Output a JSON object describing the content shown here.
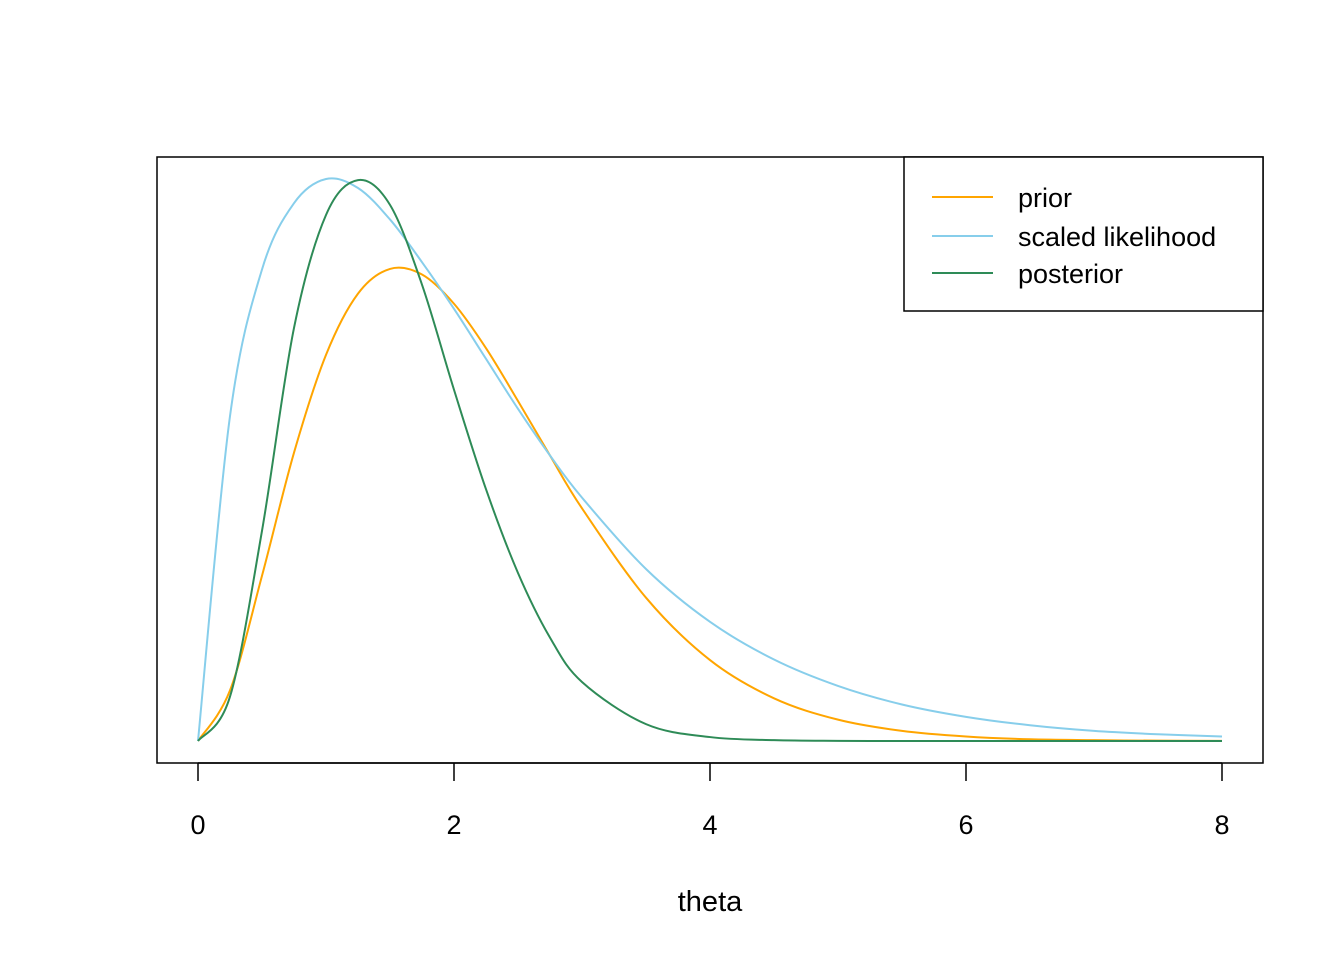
{
  "chart_data": {
    "type": "line",
    "title": "",
    "xlabel": "theta",
    "ylabel": "",
    "xlim": [
      0,
      8
    ],
    "x_ticks": [
      "0",
      "2",
      "4",
      "6",
      "8"
    ],
    "y_axis_shown": false,
    "grid": false,
    "legend_position": "top-right",
    "x": [
      0,
      0.25,
      0.5,
      0.75,
      1.0,
      1.25,
      1.5,
      1.75,
      2.0,
      2.25,
      2.5,
      2.75,
      3.0,
      3.5,
      4.0,
      4.5,
      5.0,
      5.5,
      6.0,
      6.5,
      7.0,
      7.5,
      8.0
    ],
    "series": [
      {
        "name": "prior",
        "color": "#FFA500",
        "values": [
          0,
          0.09,
          0.294,
          0.513,
          0.687,
          0.796,
          0.84,
          0.83,
          0.778,
          0.699,
          0.605,
          0.508,
          0.414,
          0.255,
          0.144,
          0.076,
          0.038,
          0.018,
          0.008,
          0.003,
          0.0015,
          0.0006,
          0.0002
        ]
      },
      {
        "name": "scaled likelihood",
        "color": "#87CEEB",
        "values": [
          0,
          0.578,
          0.839,
          0.957,
          1.0,
          0.984,
          0.928,
          0.852,
          0.769,
          0.68,
          0.591,
          0.508,
          0.433,
          0.306,
          0.212,
          0.145,
          0.098,
          0.065,
          0.043,
          0.028,
          0.018,
          0.012,
          0.008
        ]
      },
      {
        "name": "posterior",
        "color": "#2E8B57",
        "values": [
          0,
          0.079,
          0.374,
          0.735,
          0.936,
          0.998,
          0.954,
          0.812,
          0.625,
          0.448,
          0.299,
          0.184,
          0.105,
          0.03,
          0.007,
          0.0015,
          0.0003,
          5e-05,
          1e-05,
          0,
          0,
          0,
          0
        ]
      }
    ]
  }
}
